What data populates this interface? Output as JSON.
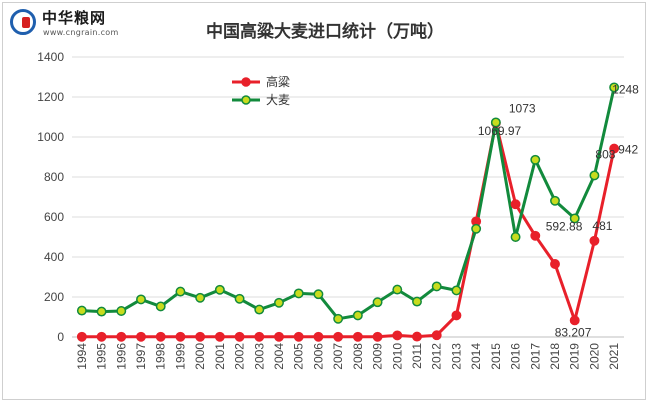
{
  "logo": {
    "name": "中华粮网",
    "url": "www.cngrain.com"
  },
  "chart_data": {
    "type": "line",
    "title": "中国高粱大麦进口统计（万吨）",
    "xlabel": "",
    "ylabel": "",
    "ylim": [
      0,
      1400
    ],
    "yticks": [
      0,
      200,
      400,
      600,
      800,
      1000,
      1200,
      1400
    ],
    "grid": true,
    "legend_position": "top-left",
    "categories": [
      "1994",
      "1995",
      "1996",
      "1997",
      "1998",
      "1999",
      "2000",
      "2001",
      "2002",
      "2003",
      "2004",
      "2005",
      "2006",
      "2007",
      "2008",
      "2009",
      "2010",
      "2011",
      "2012",
      "2013",
      "2014",
      "2015",
      "2016",
      "2017",
      "2018",
      "2019",
      "2020",
      "2021"
    ],
    "series": [
      {
        "name": "高粱",
        "color": "#e8202a",
        "marker_color": "#e8202a",
        "values": [
          1,
          1,
          1,
          1,
          1,
          1,
          1,
          1,
          1,
          1,
          1,
          1,
          1,
          1,
          1,
          1,
          8,
          2,
          9,
          108,
          578,
          1069.97,
          664,
          506,
          365,
          83.207,
          481,
          942
        ]
      },
      {
        "name": "大麦",
        "color": "#128a3c",
        "marker_color": "#c8dc1e",
        "values": [
          132,
          127,
          130,
          188,
          153,
          227,
          196,
          236,
          191,
          137,
          171,
          218,
          214,
          91,
          108,
          174,
          237,
          177,
          253,
          233,
          541,
          1073,
          500,
          886,
          681,
          592.88,
          808,
          1248
        ]
      }
    ],
    "data_labels": [
      {
        "series": "大麦",
        "index": 21,
        "text": "1073"
      },
      {
        "series": "高粱",
        "index": 21,
        "text": "1069.97"
      },
      {
        "series": "大麦",
        "index": 25,
        "text": "592.88"
      },
      {
        "series": "高粱",
        "index": 25,
        "text": "83.207"
      },
      {
        "series": "高粱",
        "index": 26,
        "text": "481"
      },
      {
        "series": "大麦",
        "index": 26,
        "text": "808"
      },
      {
        "series": "高粱",
        "index": 27,
        "text": "942"
      },
      {
        "series": "大麦",
        "index": 27,
        "text": "1248"
      }
    ]
  }
}
